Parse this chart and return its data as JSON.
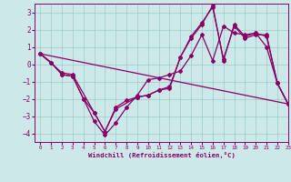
{
  "xlabel": "Windchill (Refroidissement éolien,°C)",
  "xlim": [
    -0.5,
    23
  ],
  "ylim": [
    -4.5,
    3.5
  ],
  "yticks": [
    -4,
    -3,
    -2,
    -1,
    0,
    1,
    2,
    3
  ],
  "xticks": [
    0,
    1,
    2,
    3,
    4,
    5,
    6,
    7,
    8,
    9,
    10,
    11,
    12,
    13,
    14,
    15,
    16,
    17,
    18,
    19,
    20,
    21,
    22,
    23
  ],
  "bg_color": "#cce8e8",
  "grid_color": "#99cccc",
  "line_color": "#880066",
  "line1_x": [
    0,
    1,
    2,
    3,
    4,
    5,
    6,
    7,
    8,
    9,
    10,
    11,
    12,
    13,
    14,
    15,
    16,
    17,
    18,
    19,
    20,
    21,
    22,
    23
  ],
  "line1_y": [
    0.6,
    0.1,
    -0.6,
    -0.7,
    -2.0,
    -3.3,
    -4.1,
    -3.4,
    -2.5,
    -1.8,
    -0.9,
    -0.8,
    -0.6,
    -0.4,
    0.5,
    1.7,
    0.2,
    2.2,
    1.8,
    1.7,
    1.8,
    1.0,
    -1.1,
    -2.3
  ],
  "line2_x": [
    0,
    1,
    2,
    3,
    4,
    5,
    6,
    7,
    9,
    10,
    11,
    12,
    13,
    14,
    15,
    16,
    17,
    18,
    19,
    20,
    21,
    22,
    23
  ],
  "line2_y": [
    0.6,
    0.1,
    -0.6,
    -0.7,
    -2.0,
    -2.8,
    -3.9,
    -2.6,
    -1.9,
    -1.8,
    -1.5,
    -1.4,
    0.4,
    1.6,
    2.4,
    3.3,
    0.3,
    2.2,
    1.5,
    1.7,
    1.7,
    -1.1,
    -2.3
  ],
  "line3_x": [
    0,
    2,
    3,
    5,
    6,
    7,
    8,
    9,
    10,
    11,
    12,
    13,
    14,
    15,
    16,
    17,
    18,
    19,
    20,
    21,
    22,
    23
  ],
  "line3_y": [
    0.6,
    -0.5,
    -0.6,
    -2.8,
    -3.9,
    -2.5,
    -2.1,
    -1.9,
    -1.8,
    -1.5,
    -1.3,
    0.4,
    1.5,
    2.3,
    3.4,
    0.2,
    2.3,
    1.6,
    1.8,
    1.6,
    -1.1,
    -2.3
  ],
  "line4_x": [
    0,
    23
  ],
  "line4_y": [
    0.6,
    -2.3
  ]
}
